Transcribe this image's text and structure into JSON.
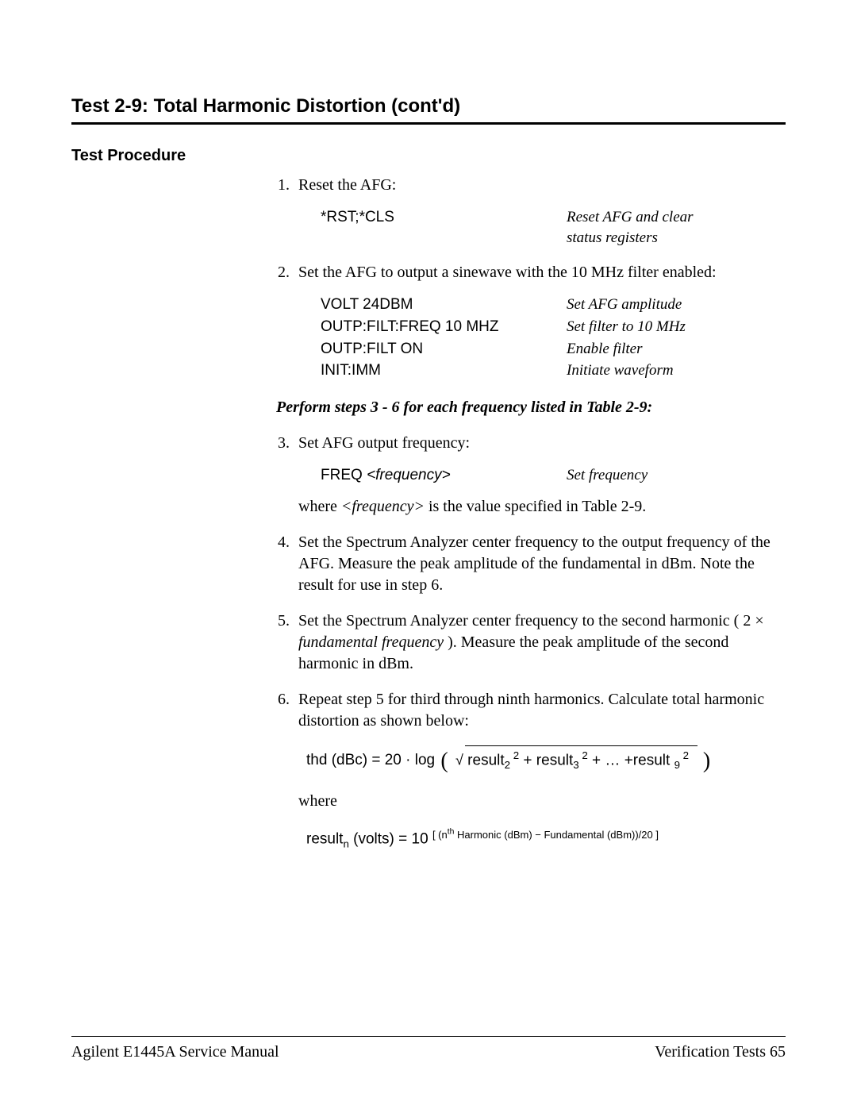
{
  "title": "Test 2-9:  Total Harmonic Distortion (cont'd)",
  "section_header": "Test Procedure",
  "perform_line": "Perform steps 3 - 6 for each frequency listed in Table 2-9:",
  "steps": {
    "s1": {
      "num": "1.",
      "text": "Reset the AFG:",
      "cmds": [
        {
          "left": "*RST;*CLS",
          "right_a": "Reset AFG and clear",
          "right_b": "status registers"
        }
      ]
    },
    "s2": {
      "num": "2.",
      "text": "Set the AFG to output a sinewave with the 10 MHz filter enabled:",
      "cmds": [
        {
          "left": "VOLT 24DBM",
          "right": "Set AFG amplitude"
        },
        {
          "left": "OUTP:FILT:FREQ 10 MHZ",
          "right": "Set filter to 10 MHz"
        },
        {
          "left": "OUTP:FILT ON",
          "right": "Enable filter"
        },
        {
          "left": "INIT:IMM",
          "right": "Initiate waveform"
        }
      ]
    },
    "s3": {
      "num": "3.",
      "text": "Set AFG output frequency:",
      "cmd_left_a": "FREQ ",
      "cmd_left_b": "<frequency>",
      "cmd_right": "Set frequency",
      "where_a": "where ",
      "where_b": "<frequency>",
      "where_c": " is the value specified in Table 2-9."
    },
    "s4": {
      "num": "4.",
      "text": "Set the Spectrum Analyzer center frequency to the output frequency of the AFG.  Measure the peak amplitude of the fundamental in dBm. Note the result for use in step 6."
    },
    "s5": {
      "num": "5.",
      "text_a": "Set the Spectrum Analyzer center frequency to the second harmonic ( 2 × ",
      "text_b": "fundamental frequency",
      "text_c": " ).  Measure the peak amplitude of the second harmonic in dBm."
    },
    "s6": {
      "num": "6.",
      "text": "Repeat step 5 for third through ninth harmonics.  Calculate total harmonic distortion as shown below:",
      "formula1": {
        "a": "thd (dBc) = 20 · log ",
        "sqrt_sym": "√",
        "b": " result",
        "c": "2",
        "d": " + result",
        "e": "3",
        "f": " + … +result ",
        "g": "9",
        "sq": " 2"
      },
      "where": "where",
      "formula2": {
        "a": "result",
        "n": "n",
        "b": " (volts) = 10 ",
        "exp_a": "[ (n",
        "exp_th": "th",
        "exp_b": " Harmonic (dBm) − Fundamental (dBm))/20 ]"
      }
    }
  },
  "footer": {
    "left": "Agilent E1445A Service Manual",
    "right_a": "Verification Tests  ",
    "right_b": "65"
  }
}
